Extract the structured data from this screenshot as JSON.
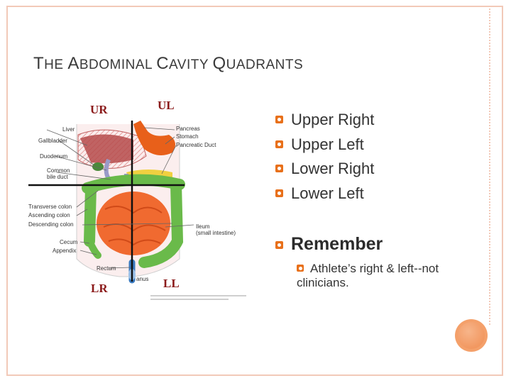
{
  "title": {
    "part1_cap": "T",
    "part1_rest": "HE ",
    "part2_cap": "A",
    "part2_rest": "BDOMINAL ",
    "part3_cap": "C",
    "part3_rest": "AVITY ",
    "part4_cap": "Q",
    "part4_rest": "UADRANTS"
  },
  "quadrants": {
    "ur": "UR",
    "ul": "UL",
    "lr": "LR",
    "ll": "LL"
  },
  "diagram_labels": {
    "liver": "Liver",
    "gallbladder": "Gallbladder",
    "duodenum": "Duodenum",
    "common_bile_duct_1": "Common",
    "common_bile_duct_2": "bile duct",
    "transverse_colon": "Transverse colon",
    "ascending_colon": "Ascending colon",
    "descending_colon": "Descending colon",
    "cecum": "Cecum",
    "appendix": "Appendix",
    "rectum": "Rectum",
    "anus": "anus",
    "pancreas": "Pancreas",
    "stomach": "Stomach",
    "pancreatic_duct": "Pancreatic Duct",
    "ileum_1": "Ileum",
    "ileum_2": "(small intestine)"
  },
  "bullets": [
    "Upper Right",
    "Upper Left",
    "Lower Right",
    "Lower Left"
  ],
  "remember": "Remember",
  "sub_bullet_line1": "Athlete’s right & left--not",
  "sub_bullet_line2": "clinicians.",
  "colors": {
    "accent": "#e8701a",
    "quadrant_label": "#8b1a1a",
    "frame": "#f2c9b8"
  },
  "icons": {
    "bullet": "bullet-icon"
  }
}
